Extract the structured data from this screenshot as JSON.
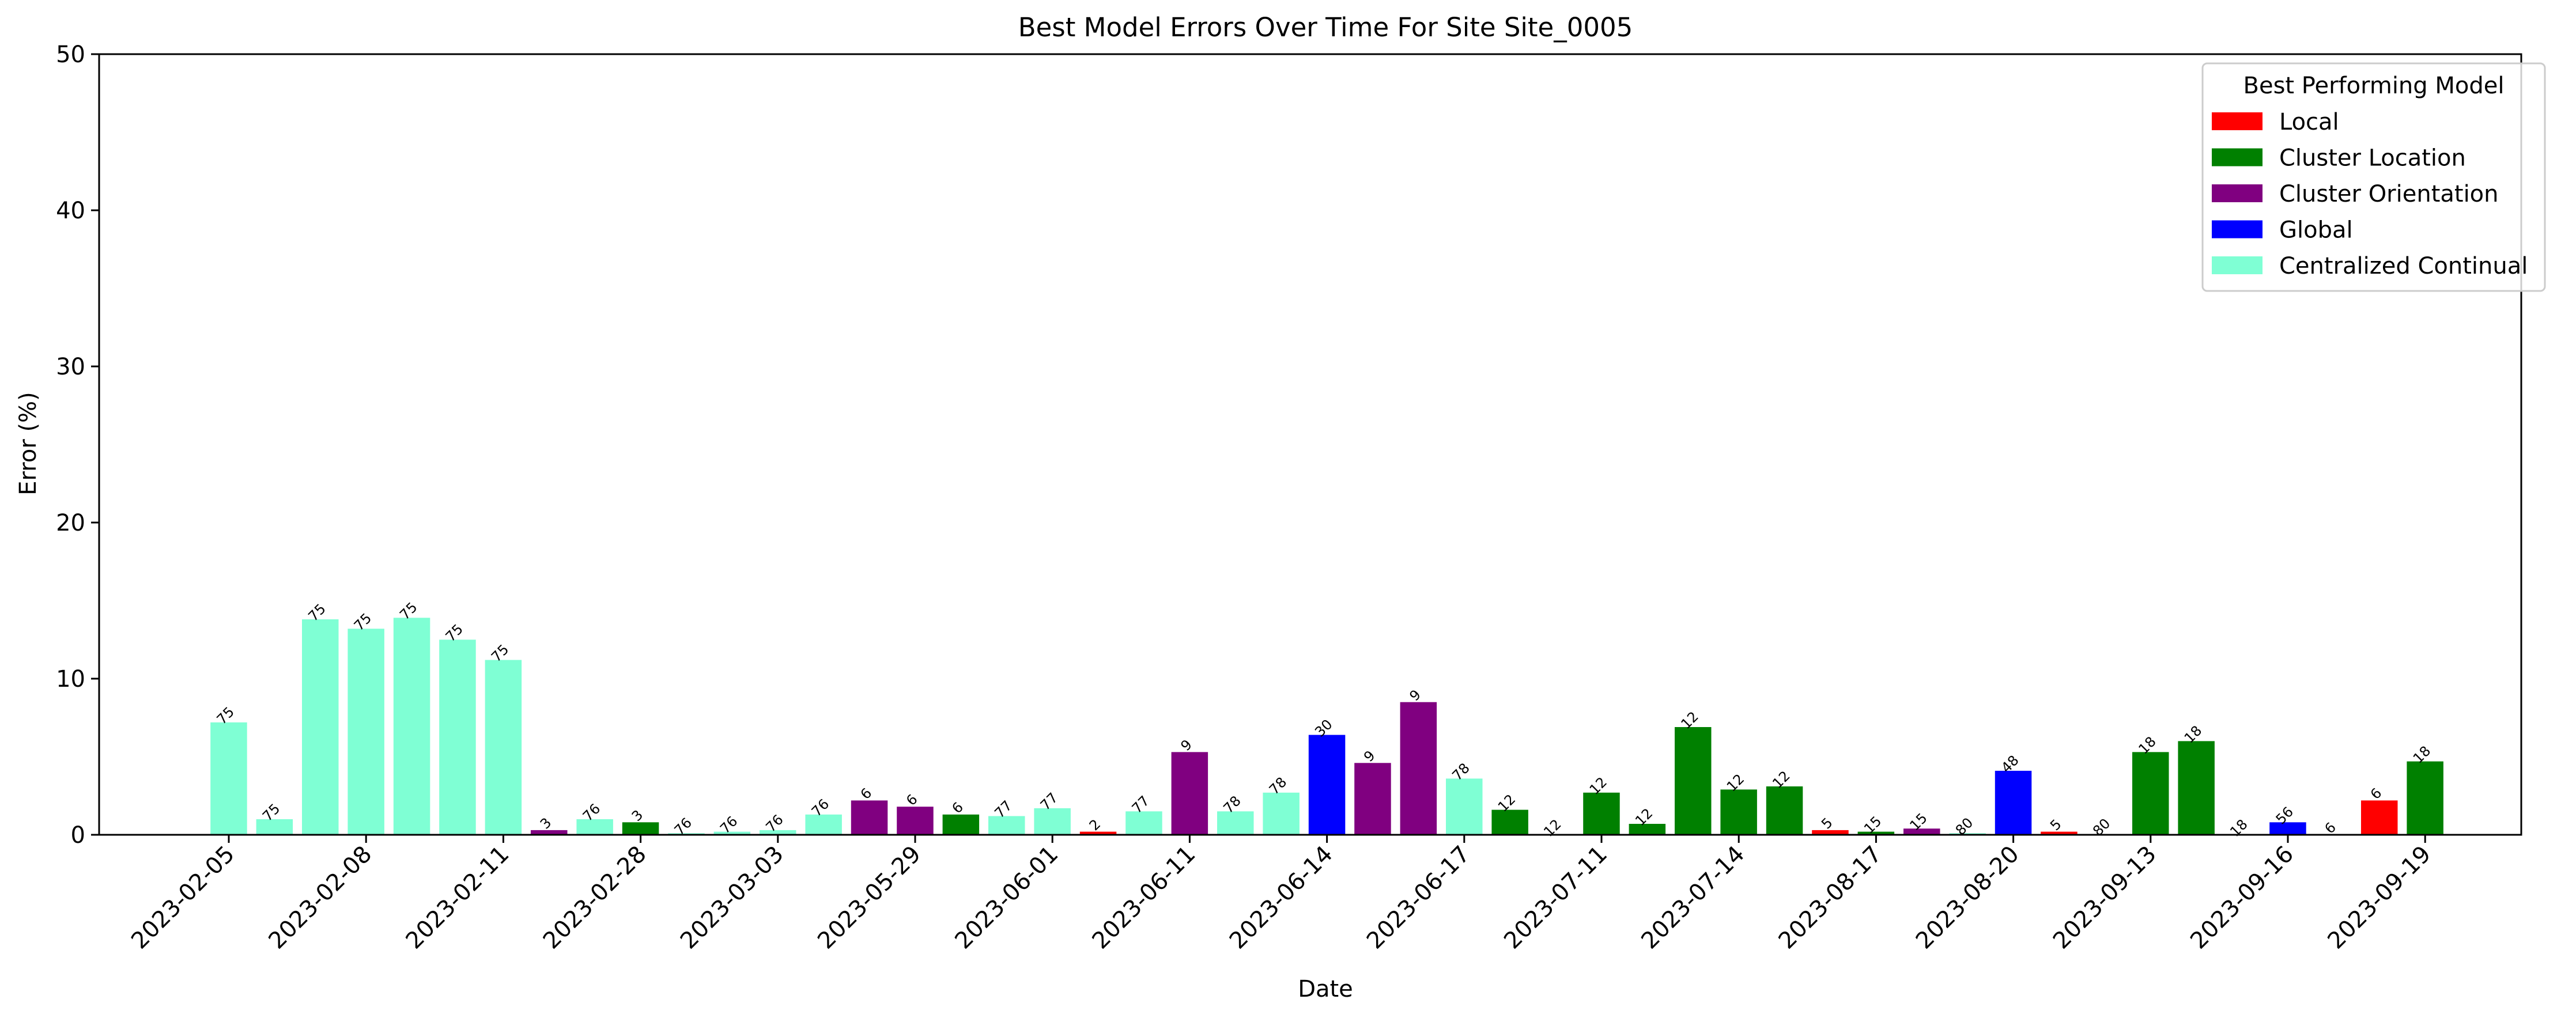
{
  "chart_data": {
    "type": "bar",
    "title": "Best Model Errors Over Time For Site Site_0005",
    "xlabel": "Date",
    "ylabel": "Error (%)",
    "ylim": [
      0,
      50
    ],
    "yticks": [
      0,
      10,
      20,
      30,
      40,
      50
    ],
    "grid": false,
    "legend": {
      "title": "Best Performing Model",
      "position": "top-right",
      "entries": [
        {
          "name": "Local",
          "color": "#ff0000"
        },
        {
          "name": "Cluster Location",
          "color": "#008000"
        },
        {
          "name": "Cluster Orientation",
          "color": "#800080"
        },
        {
          "name": "Global",
          "color": "#0000ff"
        },
        {
          "name": "Centralized Continual",
          "color": "#7fffd4"
        }
      ]
    },
    "tick_labels": [
      {
        "label": "2023-02-05",
        "bar": 0
      },
      {
        "label": "2023-02-08",
        "bar": 3
      },
      {
        "label": "2023-02-11",
        "bar": 6
      },
      {
        "label": "2023-02-28",
        "bar": 9
      },
      {
        "label": "2023-03-03",
        "bar": 12
      },
      {
        "label": "2023-05-29",
        "bar": 15
      },
      {
        "label": "2023-06-01",
        "bar": 18
      },
      {
        "label": "2023-06-11",
        "bar": 21
      },
      {
        "label": "2023-06-14",
        "bar": 24
      },
      {
        "label": "2023-06-17",
        "bar": 27
      },
      {
        "label": "2023-07-11",
        "bar": 30
      },
      {
        "label": "2023-07-14",
        "bar": 33
      },
      {
        "label": "2023-08-17",
        "bar": 36
      },
      {
        "label": "2023-08-20",
        "bar": 39
      },
      {
        "label": "2023-09-13",
        "bar": 42
      },
      {
        "label": "2023-09-16",
        "bar": 45
      },
      {
        "label": "2023-09-19",
        "bar": 48
      }
    ],
    "bars": [
      {
        "value": 7.2,
        "model": "Centralized Continual",
        "label": "75"
      },
      {
        "value": 1.0,
        "model": "Centralized Continual",
        "label": "75"
      },
      {
        "value": 13.8,
        "model": "Centralized Continual",
        "label": "75"
      },
      {
        "value": 13.2,
        "model": "Centralized Continual",
        "label": "75"
      },
      {
        "value": 13.9,
        "model": "Centralized Continual",
        "label": "75"
      },
      {
        "value": 12.5,
        "model": "Centralized Continual",
        "label": "75"
      },
      {
        "value": 11.2,
        "model": "Centralized Continual",
        "label": "75"
      },
      {
        "value": 0.3,
        "model": "Cluster Orientation",
        "label": "3"
      },
      {
        "value": 1.0,
        "model": "Centralized Continual",
        "label": "76"
      },
      {
        "value": 0.8,
        "model": "Cluster Location",
        "label": "3"
      },
      {
        "value": 0.1,
        "model": "Centralized Continual",
        "label": "76"
      },
      {
        "value": 0.2,
        "model": "Centralized Continual",
        "label": "76"
      },
      {
        "value": 0.3,
        "model": "Centralized Continual",
        "label": "76"
      },
      {
        "value": 1.3,
        "model": "Centralized Continual",
        "label": "76"
      },
      {
        "value": 2.2,
        "model": "Cluster Orientation",
        "label": "6"
      },
      {
        "value": 1.8,
        "model": "Cluster Orientation",
        "label": "6"
      },
      {
        "value": 1.3,
        "model": "Cluster Location",
        "label": "6"
      },
      {
        "value": 1.2,
        "model": "Centralized Continual",
        "label": "77"
      },
      {
        "value": 1.7,
        "model": "Centralized Continual",
        "label": "77"
      },
      {
        "value": 0.2,
        "model": "Local",
        "label": "2"
      },
      {
        "value": 1.5,
        "model": "Centralized Continual",
        "label": "77"
      },
      {
        "value": 5.3,
        "model": "Cluster Orientation",
        "label": "9"
      },
      {
        "value": 1.5,
        "model": "Centralized Continual",
        "label": "78"
      },
      {
        "value": 2.7,
        "model": "Centralized Continual",
        "label": "78"
      },
      {
        "value": 6.4,
        "model": "Global",
        "label": "30"
      },
      {
        "value": 4.6,
        "model": "Cluster Orientation",
        "label": "9"
      },
      {
        "value": 8.5,
        "model": "Cluster Orientation",
        "label": "9"
      },
      {
        "value": 3.6,
        "model": "Centralized Continual",
        "label": "78"
      },
      {
        "value": 1.6,
        "model": "Cluster Location",
        "label": "12"
      },
      {
        "value": 0.0,
        "model": "Cluster Location",
        "label": "12"
      },
      {
        "value": 2.7,
        "model": "Cluster Location",
        "label": "12"
      },
      {
        "value": 0.7,
        "model": "Cluster Location",
        "label": "12"
      },
      {
        "value": 6.9,
        "model": "Cluster Location",
        "label": "12"
      },
      {
        "value": 2.9,
        "model": "Cluster Location",
        "label": "12"
      },
      {
        "value": 3.1,
        "model": "Cluster Location",
        "label": "12"
      },
      {
        "value": 0.3,
        "model": "Local",
        "label": "5"
      },
      {
        "value": 0.2,
        "model": "Cluster Location",
        "label": "15"
      },
      {
        "value": 0.4,
        "model": "Cluster Orientation",
        "label": "15"
      },
      {
        "value": 0.1,
        "model": "Centralized Continual",
        "label": "80"
      },
      {
        "value": 4.1,
        "model": "Global",
        "label": "48"
      },
      {
        "value": 0.2,
        "model": "Local",
        "label": "5"
      },
      {
        "value": 0.05,
        "model": "Centralized Continual",
        "label": "80"
      },
      {
        "value": 5.3,
        "model": "Cluster Location",
        "label": "18"
      },
      {
        "value": 6.0,
        "model": "Cluster Location",
        "label": "18"
      },
      {
        "value": 0.0,
        "model": "Cluster Location",
        "label": "18"
      },
      {
        "value": 0.8,
        "model": "Global",
        "label": "56"
      },
      {
        "value": 0.0,
        "model": "Local",
        "label": "6"
      },
      {
        "value": 2.2,
        "model": "Local",
        "label": "6"
      },
      {
        "value": 4.7,
        "model": "Cluster Location",
        "label": "18"
      }
    ]
  }
}
